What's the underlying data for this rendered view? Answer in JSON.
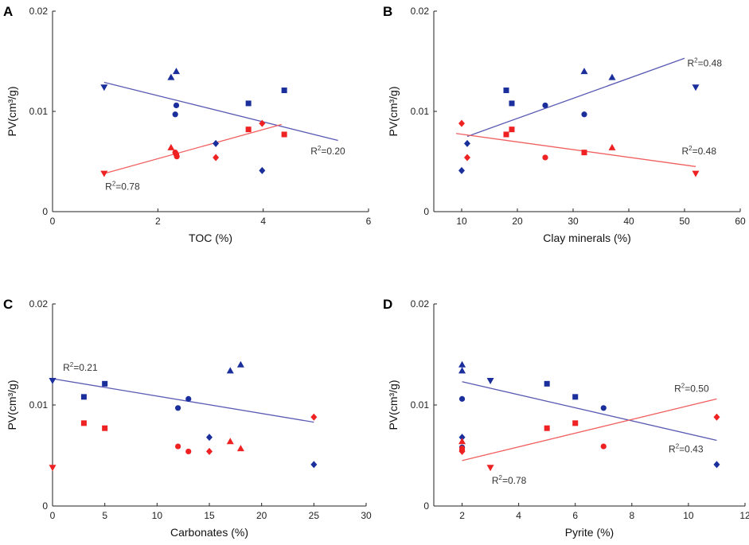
{
  "colors": {
    "blue": "#1a2e9c",
    "red": "#ee2222",
    "blue_line": "#5a5ab4",
    "red_line": "#f06060"
  },
  "chart_data": [
    {
      "type": "scatter",
      "panel": "A",
      "xlabel": "TOC (%)",
      "ylabel": "PV(cm³/g)",
      "xlim": [
        0,
        6
      ],
      "ylim": [
        0,
        0.02
      ],
      "xticks": [
        "0",
        "2",
        "4",
        "6"
      ],
      "yticks": [
        "0",
        "0.01",
        "0.02"
      ],
      "series": [
        {
          "name": "blue",
          "color": "#1a2e9c",
          "points": [
            {
              "x": 0.98,
              "y": 0.0124,
              "marker": "triangle-down"
            },
            {
              "x": 2.25,
              "y": 0.0134,
              "marker": "triangle-up"
            },
            {
              "x": 2.35,
              "y": 0.014,
              "marker": "triangle-up"
            },
            {
              "x": 2.35,
              "y": 0.0106,
              "marker": "circle"
            },
            {
              "x": 2.33,
              "y": 0.0097,
              "marker": "circle"
            },
            {
              "x": 3.1,
              "y": 0.0068,
              "marker": "diamond"
            },
            {
              "x": 3.72,
              "y": 0.0108,
              "marker": "square"
            },
            {
              "x": 4.4,
              "y": 0.0121,
              "marker": "square"
            },
            {
              "x": 3.98,
              "y": 0.0041,
              "marker": "diamond"
            }
          ]
        },
        {
          "name": "red",
          "color": "#ee2222",
          "points": [
            {
              "x": 0.98,
              "y": 0.0038,
              "marker": "triangle-down"
            },
            {
              "x": 2.25,
              "y": 0.0064,
              "marker": "triangle-up"
            },
            {
              "x": 2.33,
              "y": 0.0059,
              "marker": "circle"
            },
            {
              "x": 2.35,
              "y": 0.0057,
              "marker": "circle"
            },
            {
              "x": 2.36,
              "y": 0.0055,
              "marker": "circle"
            },
            {
              "x": 3.1,
              "y": 0.0054,
              "marker": "diamond"
            },
            {
              "x": 3.72,
              "y": 0.0082,
              "marker": "square"
            },
            {
              "x": 3.98,
              "y": 0.0088,
              "marker": "diamond"
            },
            {
              "x": 4.4,
              "y": 0.0077,
              "marker": "square"
            }
          ]
        }
      ],
      "fits": [
        {
          "series": "blue",
          "x": [
            0.98,
            5.42
          ],
          "y": [
            0.0129,
            0.0071
          ]
        },
        {
          "series": "red",
          "x": [
            0.98,
            4.35
          ],
          "y": [
            0.0038,
            0.0087
          ]
        }
      ],
      "annotations": [
        {
          "r2": "0.20",
          "x": 4.9,
          "y": 0.0057,
          "anchor": "start"
        },
        {
          "r2": "0.78",
          "x": 1.0,
          "y": 0.0022,
          "anchor": "start"
        }
      ]
    },
    {
      "type": "scatter",
      "panel": "B",
      "xlabel": "Clay minerals (%)",
      "ylabel": "PV(cm³/g)",
      "xlim": [
        5,
        60
      ],
      "ylim": [
        0,
        0.02
      ],
      "xticks": [
        "10",
        "20",
        "30",
        "40",
        "50",
        "60"
      ],
      "yticks": [
        "0",
        "0.01",
        "0.02"
      ],
      "series": [
        {
          "name": "blue",
          "color": "#1a2e9c",
          "points": [
            {
              "x": 10,
              "y": 0.0041,
              "marker": "diamond"
            },
            {
              "x": 11,
              "y": 0.0068,
              "marker": "diamond"
            },
            {
              "x": 18,
              "y": 0.0121,
              "marker": "square"
            },
            {
              "x": 19,
              "y": 0.0108,
              "marker": "square"
            },
            {
              "x": 25,
              "y": 0.0106,
              "marker": "circle"
            },
            {
              "x": 32,
              "y": 0.014,
              "marker": "triangle-up"
            },
            {
              "x": 32,
              "y": 0.0097,
              "marker": "circle"
            },
            {
              "x": 37,
              "y": 0.0134,
              "marker": "triangle-up"
            },
            {
              "x": 52,
              "y": 0.0124,
              "marker": "triangle-down"
            }
          ]
        },
        {
          "name": "red",
          "color": "#ee2222",
          "points": [
            {
              "x": 10,
              "y": 0.0088,
              "marker": "diamond"
            },
            {
              "x": 11,
              "y": 0.0054,
              "marker": "diamond"
            },
            {
              "x": 18,
              "y": 0.0077,
              "marker": "square"
            },
            {
              "x": 19,
              "y": 0.0082,
              "marker": "square"
            },
            {
              "x": 25,
              "y": 0.0054,
              "marker": "circle"
            },
            {
              "x": 32,
              "y": 0.0059,
              "marker": "square"
            },
            {
              "x": 37,
              "y": 0.0064,
              "marker": "triangle-up"
            },
            {
              "x": 52,
              "y": 0.0038,
              "marker": "triangle-down"
            }
          ]
        }
      ],
      "fits": [
        {
          "series": "blue",
          "x": [
            11,
            50
          ],
          "y": [
            0.0075,
            0.0153
          ]
        },
        {
          "series": "red",
          "x": [
            9,
            52
          ],
          "y": [
            0.0078,
            0.0045
          ]
        }
      ],
      "annotations": [
        {
          "r2": "0.48",
          "x": 50.5,
          "y": 0.0145,
          "anchor": "start"
        },
        {
          "r2": "0.48",
          "x": 49.5,
          "y": 0.0057,
          "anchor": "start"
        }
      ]
    },
    {
      "type": "scatter",
      "panel": "C",
      "xlabel": "Carbonates (%)",
      "ylabel": "PV(cm³/g)",
      "xlim": [
        0,
        30
      ],
      "ylim": [
        0,
        0.02
      ],
      "xticks": [
        "0",
        "5",
        "10",
        "15",
        "20",
        "25",
        "30"
      ],
      "yticks": [
        "0",
        "0.01",
        "0.02"
      ],
      "series": [
        {
          "name": "blue",
          "color": "#1a2e9c",
          "points": [
            {
              "x": 0,
              "y": 0.0124,
              "marker": "triangle-down"
            },
            {
              "x": 3,
              "y": 0.0108,
              "marker": "square"
            },
            {
              "x": 5,
              "y": 0.0121,
              "marker": "square"
            },
            {
              "x": 12,
              "y": 0.0097,
              "marker": "circle"
            },
            {
              "x": 13,
              "y": 0.0106,
              "marker": "circle"
            },
            {
              "x": 15,
              "y": 0.0068,
              "marker": "diamond"
            },
            {
              "x": 17,
              "y": 0.0134,
              "marker": "triangle-up"
            },
            {
              "x": 18,
              "y": 0.014,
              "marker": "triangle-up"
            },
            {
              "x": 25,
              "y": 0.0041,
              "marker": "diamond"
            }
          ]
        },
        {
          "name": "red",
          "color": "#ee2222",
          "points": [
            {
              "x": 0,
              "y": 0.0038,
              "marker": "triangle-down"
            },
            {
              "x": 3,
              "y": 0.0082,
              "marker": "square"
            },
            {
              "x": 5,
              "y": 0.0077,
              "marker": "square"
            },
            {
              "x": 12,
              "y": 0.0059,
              "marker": "circle"
            },
            {
              "x": 13,
              "y": 0.0054,
              "marker": "circle"
            },
            {
              "x": 15,
              "y": 0.0054,
              "marker": "diamond"
            },
            {
              "x": 17,
              "y": 0.0064,
              "marker": "triangle-up"
            },
            {
              "x": 18,
              "y": 0.0057,
              "marker": "triangle-up"
            },
            {
              "x": 25,
              "y": 0.0088,
              "marker": "diamond"
            }
          ]
        }
      ],
      "fits": [
        {
          "series": "blue",
          "x": [
            0,
            25
          ],
          "y": [
            0.0126,
            0.0083
          ]
        }
      ],
      "annotations": [
        {
          "r2": "0.21",
          "x": 1.0,
          "y": 0.0134,
          "anchor": "start"
        }
      ]
    },
    {
      "type": "scatter",
      "panel": "D",
      "xlabel": "Pyrite (%)",
      "ylabel": "PV(cm³/g)",
      "xlim": [
        1,
        12
      ],
      "ylim": [
        0,
        0.02
      ],
      "xticks": [
        "2",
        "4",
        "6",
        "8",
        "10",
        "12"
      ],
      "yticks": [
        "0",
        "0.01",
        "0.02"
      ],
      "series": [
        {
          "name": "blue",
          "color": "#1a2e9c",
          "points": [
            {
              "x": 2,
              "y": 0.014,
              "marker": "triangle-up"
            },
            {
              "x": 2,
              "y": 0.0134,
              "marker": "triangle-up"
            },
            {
              "x": 2,
              "y": 0.0106,
              "marker": "circle"
            },
            {
              "x": 2,
              "y": 0.0068,
              "marker": "diamond"
            },
            {
              "x": 2,
              "y": 0.0058,
              "marker": "circle"
            },
            {
              "x": 3,
              "y": 0.0124,
              "marker": "triangle-down"
            },
            {
              "x": 5,
              "y": 0.0121,
              "marker": "square"
            },
            {
              "x": 6,
              "y": 0.0108,
              "marker": "square"
            },
            {
              "x": 7,
              "y": 0.0097,
              "marker": "circle"
            },
            {
              "x": 11,
              "y": 0.0041,
              "marker": "diamond"
            }
          ]
        },
        {
          "name": "red",
          "color": "#ee2222",
          "points": [
            {
              "x": 2,
              "y": 0.0064,
              "marker": "triangle-up"
            },
            {
              "x": 2,
              "y": 0.0057,
              "marker": "circle"
            },
            {
              "x": 2,
              "y": 0.0055,
              "marker": "circle"
            },
            {
              "x": 2,
              "y": 0.0054,
              "marker": "diamond"
            },
            {
              "x": 3,
              "y": 0.0038,
              "marker": "triangle-down"
            },
            {
              "x": 5,
              "y": 0.0077,
              "marker": "square"
            },
            {
              "x": 6,
              "y": 0.0082,
              "marker": "square"
            },
            {
              "x": 7,
              "y": 0.0059,
              "marker": "circle"
            },
            {
              "x": 11,
              "y": 0.0088,
              "marker": "diamond"
            }
          ]
        }
      ],
      "fits": [
        {
          "series": "blue",
          "x": [
            2,
            11
          ],
          "y": [
            0.0123,
            0.0065
          ]
        },
        {
          "series": "red",
          "x": [
            2,
            11
          ],
          "y": [
            0.0045,
            0.0106
          ]
        }
      ],
      "annotations": [
        {
          "r2": "0.50",
          "x": 9.5,
          "y": 0.0113,
          "anchor": "start"
        },
        {
          "r2": "0.43",
          "x": 9.3,
          "y": 0.0053,
          "anchor": "start"
        },
        {
          "r2": "0.78",
          "x": 3.05,
          "y": 0.0022,
          "anchor": "start"
        }
      ]
    }
  ]
}
